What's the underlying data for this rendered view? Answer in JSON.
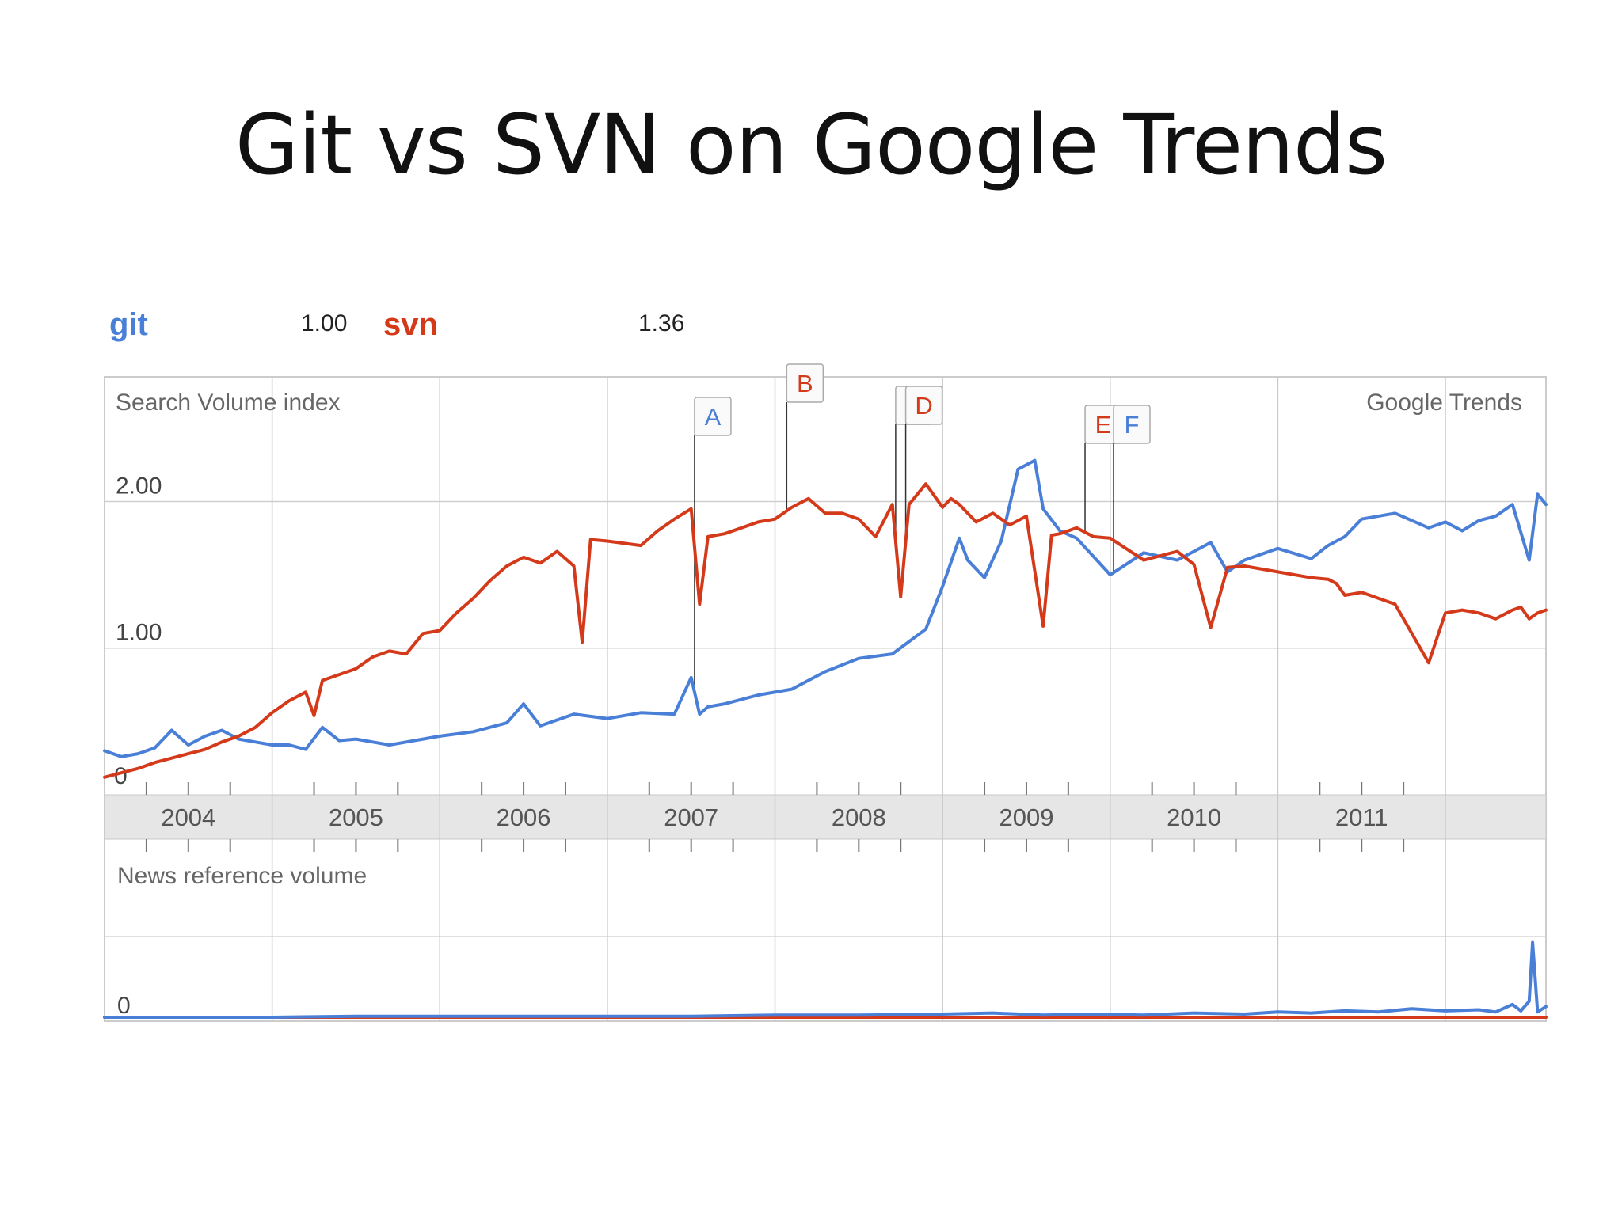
{
  "slide": {
    "title": "Git vs SVN on Google Trends"
  },
  "legend": [
    {
      "term": "git",
      "value": "1.00",
      "color": "#4a7fd8"
    },
    {
      "term": "svn",
      "value": "1.36",
      "color": "#d43a1a"
    }
  ],
  "chart_data": {
    "type": "line",
    "panels": [
      {
        "name": "search",
        "label": "Search Volume index",
        "ylim": [
          0,
          2.85
        ],
        "yticks": [
          {
            "value": 1.0,
            "label": "1.00"
          },
          {
            "value": 2.0,
            "label": "2.00"
          }
        ],
        "corner_zero": "0",
        "series": [
          {
            "name": "git",
            "color": "#4a7fd8",
            "x": [
              2004.0,
              2004.1,
              2004.2,
              2004.3,
              2004.4,
              2004.5,
              2004.6,
              2004.7,
              2004.8,
              2004.9,
              2005.0,
              2005.1,
              2005.2,
              2005.3,
              2005.4,
              2005.5,
              2005.6,
              2005.7,
              2005.8,
              2005.9,
              2006.0,
              2006.2,
              2006.4,
              2006.5,
              2006.6,
              2006.8,
              2007.0,
              2007.2,
              2007.4,
              2007.5,
              2007.55,
              2007.6,
              2007.7,
              2007.9,
              2008.1,
              2008.3,
              2008.5,
              2008.7,
              2008.9,
              2009.0,
              2009.1,
              2009.15,
              2009.25,
              2009.35,
              2009.45,
              2009.55,
              2009.6,
              2009.7,
              2009.8,
              2010.0,
              2010.2,
              2010.4,
              2010.5,
              2010.6,
              2010.7,
              2010.8,
              2011.0,
              2011.2,
              2011.3,
              2011.4,
              2011.5,
              2011.7,
              2011.9,
              2012.0,
              2012.1,
              2012.2,
              2012.3,
              2012.4,
              2012.5,
              2012.55,
              2012.6
            ],
            "y": [
              0.3,
              0.26,
              0.28,
              0.32,
              0.44,
              0.34,
              0.4,
              0.44,
              0.38,
              0.36,
              0.34,
              0.34,
              0.31,
              0.46,
              0.37,
              0.38,
              0.36,
              0.34,
              0.36,
              0.38,
              0.4,
              0.43,
              0.49,
              0.62,
              0.47,
              0.55,
              0.52,
              0.56,
              0.55,
              0.8,
              0.55,
              0.6,
              0.62,
              0.68,
              0.72,
              0.84,
              0.93,
              0.96,
              1.13,
              1.42,
              1.75,
              1.6,
              1.48,
              1.73,
              2.22,
              2.28,
              1.95,
              1.8,
              1.75,
              1.5,
              1.65,
              1.6,
              1.66,
              1.72,
              1.52,
              1.6,
              1.68,
              1.61,
              1.7,
              1.76,
              1.88,
              1.92,
              1.82,
              1.86,
              1.8,
              1.87,
              1.9,
              1.98,
              1.6,
              2.05,
              1.98
            ]
          },
          {
            "name": "svn",
            "color": "#d43a1a",
            "x": [
              2004.0,
              2004.1,
              2004.2,
              2004.3,
              2004.4,
              2004.5,
              2004.6,
              2004.7,
              2004.8,
              2004.9,
              2005.0,
              2005.1,
              2005.2,
              2005.25,
              2005.3,
              2005.4,
              2005.5,
              2005.6,
              2005.7,
              2005.8,
              2005.9,
              2006.0,
              2006.1,
              2006.2,
              2006.3,
              2006.4,
              2006.5,
              2006.6,
              2006.7,
              2006.8,
              2006.85,
              2006.9,
              2007.0,
              2007.2,
              2007.3,
              2007.4,
              2007.5,
              2007.55,
              2007.6,
              2007.7,
              2007.8,
              2007.9,
              2008.0,
              2008.1,
              2008.2,
              2008.3,
              2008.4,
              2008.5,
              2008.6,
              2008.7,
              2008.75,
              2008.8,
              2008.9,
              2009.0,
              2009.05,
              2009.1,
              2009.2,
              2009.3,
              2009.4,
              2009.5,
              2009.6,
              2009.65,
              2009.7,
              2009.8,
              2009.9,
              2010.0,
              2010.2,
              2010.4,
              2010.5,
              2010.6,
              2010.7,
              2010.8,
              2011.0,
              2011.2,
              2011.3,
              2011.35,
              2011.4,
              2011.5,
              2011.7,
              2011.9,
              2012.0,
              2012.1,
              2012.2,
              2012.3,
              2012.4,
              2012.45,
              2012.5,
              2012.55,
              2012.6
            ],
            "y": [
              0.12,
              0.15,
              0.18,
              0.22,
              0.25,
              0.28,
              0.31,
              0.36,
              0.4,
              0.46,
              0.56,
              0.64,
              0.7,
              0.54,
              0.78,
              0.82,
              0.86,
              0.94,
              0.98,
              0.96,
              1.1,
              1.12,
              1.24,
              1.34,
              1.46,
              1.56,
              1.62,
              1.58,
              1.66,
              1.56,
              1.04,
              1.74,
              1.73,
              1.7,
              1.8,
              1.88,
              1.95,
              1.3,
              1.76,
              1.78,
              1.82,
              1.86,
              1.88,
              1.96,
              2.02,
              1.92,
              1.92,
              1.88,
              1.76,
              1.98,
              1.35,
              1.98,
              2.12,
              1.96,
              2.02,
              1.98,
              1.86,
              1.92,
              1.84,
              1.9,
              1.15,
              1.77,
              1.78,
              1.82,
              1.76,
              1.75,
              1.6,
              1.66,
              1.57,
              1.14,
              1.55,
              1.56,
              1.52,
              1.48,
              1.47,
              1.44,
              1.36,
              1.38,
              1.3,
              0.9,
              1.24,
              1.26,
              1.24,
              1.2,
              1.26,
              1.28,
              1.2,
              1.24,
              1.26
            ]
          }
        ]
      },
      {
        "name": "news",
        "label": "News reference volume",
        "ylim": [
          0,
          1
        ],
        "corner_zero": "0",
        "series": [
          {
            "name": "git",
            "color": "#4a7fd8",
            "x": [
              2004.0,
              2004.5,
              2005.0,
              2005.5,
              2006.0,
              2006.5,
              2007.0,
              2007.5,
              2008.0,
              2008.5,
              2009.0,
              2009.3,
              2009.6,
              2009.9,
              2010.2,
              2010.5,
              2010.8,
              2011.0,
              2011.2,
              2011.4,
              2011.6,
              2011.8,
              2012.0,
              2012.2,
              2012.3,
              2012.4,
              2012.45,
              2012.5,
              2012.52,
              2012.55,
              2012.6
            ],
            "y": [
              0.0,
              0.0,
              0.0,
              0.01,
              0.01,
              0.01,
              0.01,
              0.01,
              0.02,
              0.02,
              0.03,
              0.04,
              0.02,
              0.03,
              0.02,
              0.04,
              0.03,
              0.05,
              0.04,
              0.06,
              0.05,
              0.08,
              0.06,
              0.07,
              0.05,
              0.12,
              0.06,
              0.15,
              0.7,
              0.05,
              0.1
            ]
          },
          {
            "name": "svn",
            "color": "#d43a1a",
            "x": [
              2004.0,
              2012.6
            ],
            "y": [
              0.0,
              0.0
            ]
          }
        ]
      }
    ],
    "x_axis": {
      "xlim": [
        2004.0,
        2012.6
      ],
      "year_labels": [
        "2004",
        "2005",
        "2006",
        "2007",
        "2008",
        "2009",
        "2010",
        "2011"
      ]
    },
    "annotations": [
      {
        "label": "A",
        "x": 2007.52,
        "color": "#4a7fd8"
      },
      {
        "label": "B",
        "x": 2008.07,
        "color": "#d43a1a"
      },
      {
        "label": "C",
        "x": 2008.72,
        "color": "#d43a1a"
      },
      {
        "label": "D",
        "x": 2008.78,
        "color": "#d43a1a"
      },
      {
        "label": "E",
        "x": 2009.85,
        "color": "#d43a1a"
      },
      {
        "label": "F",
        "x": 2010.02,
        "color": "#4a7fd8"
      }
    ],
    "watermark": "Google Trends",
    "grid": true
  }
}
